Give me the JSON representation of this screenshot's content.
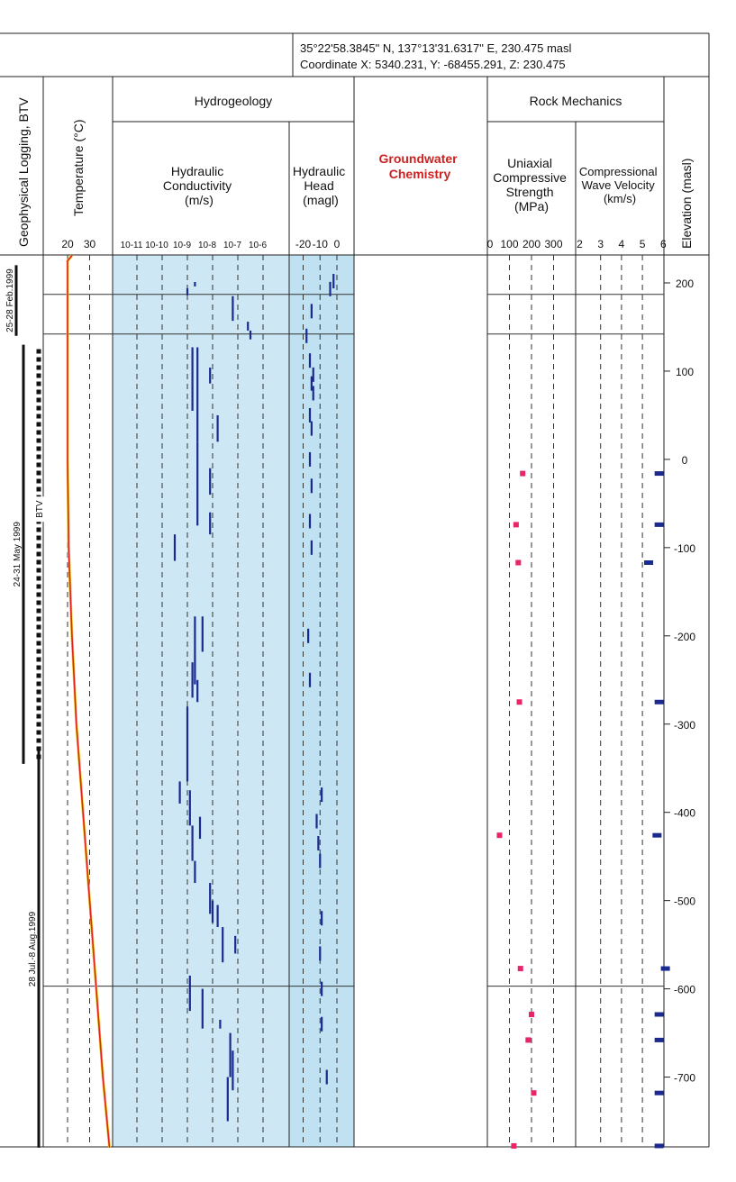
{
  "header": {
    "location_line": "35°22'58.3845\" N, 137°13'31.6317\" E, 230.475 masl",
    "coordinate_line": "Coordinate X: 5340.231, Y: -68455.291, Z: 230.475"
  },
  "columns": {
    "geophysical": "Geophysical Logging, BTV",
    "temperature": "Temperature (°C)",
    "hydrogeology": "Hydrogeology",
    "hydraulic_conductivity": [
      "Hydraulic",
      "Conductivity",
      "(m/s)"
    ],
    "hydraulic_head": [
      "Hydraulic",
      "Head",
      "(magl)"
    ],
    "groundwater_chemistry": [
      "Groundwater",
      "Chemistry"
    ],
    "rock_mechanics": "Rock Mechanics",
    "ucs": [
      "Uniaxial",
      "Compressive",
      "Strength",
      "(MPa)"
    ],
    "wave_velocity": [
      "Compressional",
      "Wave Velocity",
      "(km/s)"
    ],
    "elevation": "Elevation (masl)"
  },
  "logging_periods": [
    {
      "label": "25-28 Feb.1999",
      "top": 220,
      "bottom": 140
    },
    {
      "label": "24-31 May 1999",
      "top": 130,
      "bottom": -345
    },
    {
      "label": "28 Jul.-8 Aug.1999",
      "top": -330,
      "bottom": -780
    }
  ],
  "btv": {
    "label": "BTV",
    "top": 125,
    "bottom": -340
  },
  "chart_data": {
    "type": "well-log",
    "elevation_ticks": [
      200,
      100,
      0,
      -100,
      -200,
      -300,
      -400,
      -500,
      -600,
      -700
    ],
    "elevation_range": [
      230,
      -780
    ],
    "horizontal_lines": [
      187,
      142,
      -597
    ],
    "temperature": {
      "ticks": [
        20,
        30
      ],
      "points": [
        [
          231,
          22
        ],
        [
          225,
          20
        ],
        [
          200,
          20
        ],
        [
          100,
          20
        ],
        [
          0,
          20
        ],
        [
          -100,
          20.5
        ],
        [
          -200,
          22
        ],
        [
          -300,
          24
        ],
        [
          -400,
          27
        ],
        [
          -500,
          30
        ],
        [
          -600,
          33
        ],
        [
          -700,
          36
        ],
        [
          -780,
          39
        ]
      ]
    },
    "hydraulic_conductivity": {
      "tick_labels": [
        "10-11",
        "10-10",
        "10-9",
        "10-8",
        "10-7",
        "10-6"
      ],
      "tick_exponents": [
        -11,
        -10,
        -9,
        -8,
        -7,
        -6
      ],
      "intervals": [
        [
          -9,
          194,
          186
        ],
        [
          -8.7,
          201,
          196
        ],
        [
          -7.2,
          185,
          157
        ],
        [
          -6.6,
          156,
          146
        ],
        [
          -6.5,
          146,
          136
        ],
        [
          -8.8,
          127,
          55
        ],
        [
          -8.6,
          127,
          20
        ],
        [
          -8.1,
          104,
          86
        ],
        [
          -7.8,
          50,
          20
        ],
        [
          -8.6,
          20,
          -75
        ],
        [
          -8.1,
          -10,
          -40
        ],
        [
          -8.1,
          -60,
          -85
        ],
        [
          -9.5,
          -85,
          -115
        ],
        [
          -8.4,
          -178,
          -218
        ],
        [
          -8.7,
          -178,
          -255
        ],
        [
          -8.8,
          -230,
          -270
        ],
        [
          -8.6,
          -250,
          -275
        ],
        [
          -9,
          -280,
          -365
        ],
        [
          -9.3,
          -365,
          -390
        ],
        [
          -8.9,
          -375,
          -415
        ],
        [
          -8.5,
          -405,
          -430
        ],
        [
          -8.8,
          -415,
          -455
        ],
        [
          -8.7,
          -455,
          -480
        ],
        [
          -8.1,
          -480,
          -515
        ],
        [
          -8,
          -500,
          -525
        ],
        [
          -7.8,
          -505,
          -530
        ],
        [
          -7.6,
          -530,
          -570
        ],
        [
          -7.1,
          -540,
          -560
        ],
        [
          -8.9,
          -585,
          -625
        ],
        [
          -8.4,
          -600,
          -645
        ],
        [
          -7.7,
          -635,
          -645
        ],
        [
          -7.3,
          -650,
          -700
        ],
        [
          -7.2,
          -670,
          -715
        ],
        [
          -7.4,
          -700,
          -750
        ]
      ]
    },
    "hydraulic_head": {
      "ticks": [
        -20,
        -10,
        0
      ],
      "points": [
        [
          -18,
          140
        ],
        [
          -15,
          168
        ],
        [
          -4,
          193
        ],
        [
          -2,
          202
        ],
        [
          -16,
          112
        ],
        [
          -14,
          96
        ],
        [
          -15,
          86
        ],
        [
          -14,
          75
        ],
        [
          -16,
          50
        ],
        [
          -15,
          35
        ],
        [
          -16,
          0
        ],
        [
          -15,
          -30
        ],
        [
          -16,
          -70
        ],
        [
          -15,
          -100
        ],
        [
          -17,
          -200
        ],
        [
          -16,
          -250
        ],
        [
          -9,
          -380
        ],
        [
          -12,
          -410
        ],
        [
          -11,
          -435
        ],
        [
          -10,
          -455
        ],
        [
          -9,
          -520
        ],
        [
          -10,
          -560
        ],
        [
          -9,
          -600
        ],
        [
          -9,
          -640
        ],
        [
          -6,
          -700
        ]
      ]
    },
    "ucs": {
      "ticks": [
        0,
        100,
        200,
        300
      ],
      "points": [
        [
          -74,
          130
        ],
        [
          -16,
          160
        ],
        [
          -117,
          140
        ],
        [
          -275,
          145
        ],
        [
          -426,
          55
        ],
        [
          -577,
          150
        ],
        [
          -629,
          200
        ],
        [
          -658,
          185
        ],
        [
          -718,
          210
        ],
        [
          -778,
          120
        ]
      ]
    },
    "wave_velocity": {
      "ticks": [
        2,
        3,
        4,
        5,
        6
      ],
      "points": [
        [
          -74,
          5.8
        ],
        [
          -16,
          5.8
        ],
        [
          -117,
          5.3
        ],
        [
          -275,
          5.8
        ],
        [
          -426,
          5.7
        ],
        [
          -577,
          6.1
        ],
        [
          -629,
          5.8
        ],
        [
          -658,
          5.8
        ],
        [
          -718,
          5.8
        ],
        [
          -778,
          5.8
        ]
      ]
    }
  }
}
